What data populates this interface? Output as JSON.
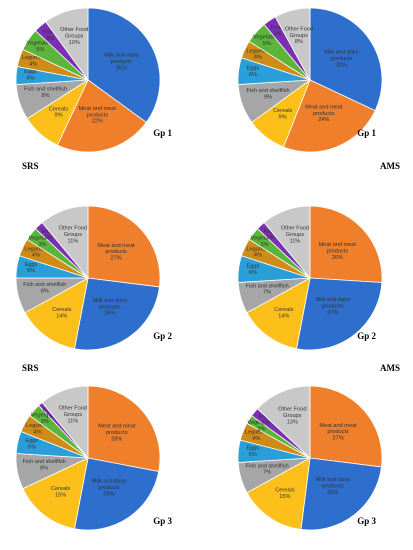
{
  "colors": {
    "Milk and dairy products": "#2e6fcd",
    "Meat and meat products": "#f07f2b",
    "Cereals": "#fdc01b",
    "Fish and shellfish": "#a6a6a6",
    "Eggs": "#2a9ed8",
    "Legumes": "#cf8b17",
    "Vegetables": "#5bb53a",
    "Fruits": "#7b2fb2",
    "Other Food Groups": "#c8c8c8"
  },
  "chart_data": [
    {
      "type": "pie",
      "group_label": "Gp 1",
      "method_label": "SRS",
      "categories": [
        "Milk and dairy products",
        "Meat and meat products",
        "Cereals",
        "Fish and shellfish",
        "Eggs",
        "Legumes",
        "Vegetables",
        "Fruits",
        "Other Food Groups"
      ],
      "values": [
        35,
        22,
        9,
        8,
        4,
        4,
        5,
        3,
        10
      ]
    },
    {
      "type": "pie",
      "group_label": "Gp 1",
      "method_label": "AMS",
      "categories": [
        "Milk and dairy products",
        "Meat and meat products",
        "Cereals",
        "Fish and shellfish",
        "Eggs",
        "Legumes",
        "Vegetables",
        "Fruits",
        "Other Food Groups"
      ],
      "values": [
        32,
        24,
        9,
        9,
        6,
        4,
        5,
        3,
        8
      ]
    },
    {
      "type": "pie",
      "group_label": "Gp 2",
      "method_label": "SRS",
      "categories": [
        "Meat and meat products",
        "Milk and dairy products",
        "Cereals",
        "Fish and shellfish",
        "Eggs",
        "Legumes",
        "Vegetables",
        "Fruits",
        "Other Food Groups"
      ],
      "values": [
        27,
        26,
        14,
        8,
        5,
        4,
        3,
        2,
        11
      ]
    },
    {
      "type": "pie",
      "group_label": "Gp 2",
      "method_label": "AMS",
      "categories": [
        "Meat and meat products",
        "Milk and dairy products",
        "Cereals",
        "Fish and shellfish",
        "Eggs",
        "Legumes",
        "Vegetables",
        "Fruits",
        "Other Food Groups"
      ],
      "values": [
        26,
        27,
        14,
        7,
        6,
        4,
        3,
        2,
        11
      ]
    },
    {
      "type": "pie",
      "group_label": "Gp 3",
      "method_label": "",
      "categories": [
        "Meat and meat products",
        "Milk and dairy products",
        "Cereals",
        "Fish and shellfish",
        "Eggs",
        "Legumes",
        "Vegetables",
        "Fruits",
        "Other Food Groups"
      ],
      "values": [
        28,
        25,
        15,
        8,
        5,
        4,
        3,
        1,
        11
      ]
    },
    {
      "type": "pie",
      "group_label": "Gp 3",
      "method_label": "",
      "categories": [
        "Meat and meat products",
        "Milk and dairy products",
        "Cereals",
        "Fish and shellfish",
        "Eggs",
        "Legumes",
        "Vegetables",
        "Fruits",
        "Other Food Groups"
      ],
      "values": [
        27,
        25,
        15,
        7,
        5,
        4,
        2,
        2,
        13
      ]
    }
  ]
}
